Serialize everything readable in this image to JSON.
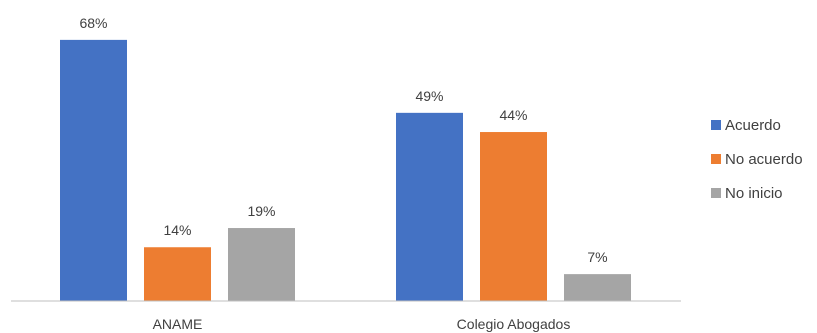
{
  "chart_data": {
    "type": "bar",
    "categories": [
      "ANAME",
      "Colegio Abogados"
    ],
    "series": [
      {
        "name": "Acuerdo",
        "values": [
          68,
          49
        ],
        "labels": [
          "68%",
          "49%"
        ]
      },
      {
        "name": "No acuerdo",
        "values": [
          14,
          44
        ],
        "labels": [
          "14%",
          "44%"
        ]
      },
      {
        "name": "No inicio",
        "values": [
          19,
          7
        ],
        "labels": [
          "19%",
          "7%"
        ]
      }
    ],
    "unit": "%",
    "ylim": [
      0,
      70
    ],
    "grid": false,
    "legend_position": "right",
    "colors": [
      "#4472C4",
      "#ED7D31",
      "#A5A5A5"
    ],
    "axis_color": "#BFBFBF",
    "text_color": "#404040"
  }
}
